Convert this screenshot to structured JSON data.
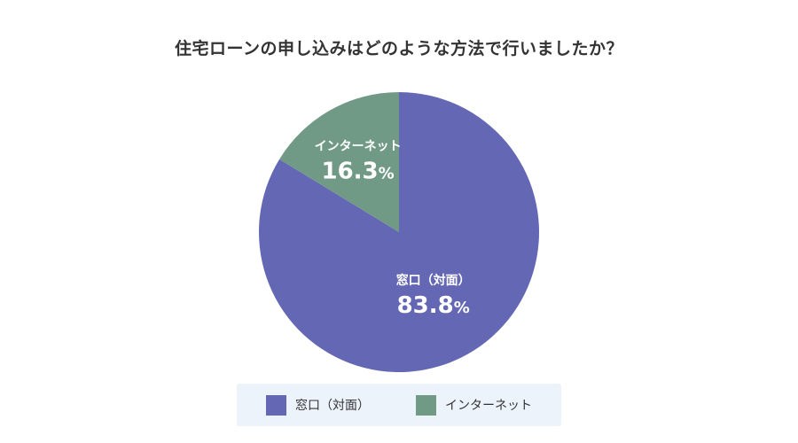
{
  "chart_data": {
    "type": "pie",
    "title": "住宅ローンの申し込みはどのような方法で行いましたか？",
    "slices": [
      {
        "label": "窓口（対面）",
        "value": 83.8,
        "value_text": "83.8",
        "unit": "%",
        "color": "#6467b4"
      },
      {
        "label": "インターネット",
        "value": 16.3,
        "value_text": "16.3",
        "unit": "%",
        "color": "#719a86"
      }
    ],
    "legend": {
      "placement": "bottom",
      "items": [
        {
          "label": "窓口（対面）",
          "color": "#6467b4"
        },
        {
          "label": "インターネット",
          "color": "#719a86"
        }
      ]
    }
  }
}
